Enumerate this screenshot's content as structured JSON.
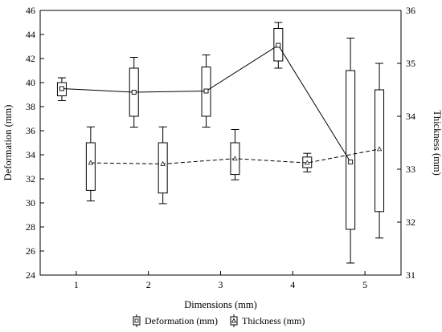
{
  "chart_data": {
    "type": "box",
    "xlabel": "Dimensions (mm)",
    "ylabel_left": "Deformation (mm)",
    "ylabel_right": "Thickness (mm)",
    "xlim": [
      0.5,
      5.5
    ],
    "ylim_left": [
      24,
      46
    ],
    "ylim_right": [
      31,
      36
    ],
    "x_ticks": [
      "1",
      "2",
      "3",
      "4",
      "5"
    ],
    "y_left_ticks": [
      "24",
      "26",
      "28",
      "30",
      "32",
      "34",
      "36",
      "38",
      "40",
      "42",
      "44",
      "46"
    ],
    "y_right_ticks": [
      "31",
      "32",
      "33",
      "34",
      "35",
      "36"
    ],
    "grid": false,
    "legend_position": "bottom",
    "series": [
      {
        "name": "Deformation (mm)",
        "axis": "left",
        "line_style": "solid",
        "marker": "square",
        "x": [
          0.8,
          1.8,
          2.8,
          3.8,
          4.8
        ],
        "mean": [
          39.5,
          39.2,
          39.3,
          43.1,
          33.4
        ],
        "box_low": [
          38.9,
          37.2,
          37.2,
          41.8,
          27.8
        ],
        "box_high": [
          40.0,
          41.2,
          41.3,
          44.5,
          41.0
        ],
        "whisker_low": [
          38.5,
          36.3,
          36.3,
          41.2,
          25.0
        ],
        "whisker_high": [
          40.4,
          42.1,
          42.3,
          45.0,
          43.7
        ]
      },
      {
        "name": "Thickness (mm)",
        "axis": "right",
        "line_style": "dashed",
        "marker": "triangle",
        "x": [
          1.2,
          2.2,
          3.2,
          4.2,
          5.2
        ],
        "mean": [
          33.12,
          33.1,
          33.2,
          33.12,
          33.38
        ],
        "box_low": [
          32.6,
          32.55,
          32.9,
          33.03,
          32.2
        ],
        "box_high": [
          33.5,
          33.5,
          33.5,
          33.23,
          34.5
        ],
        "whisker_low": [
          32.4,
          32.35,
          32.8,
          32.95,
          31.7
        ],
        "whisker_high": [
          33.8,
          33.8,
          33.75,
          33.3,
          35.0
        ]
      }
    ]
  }
}
